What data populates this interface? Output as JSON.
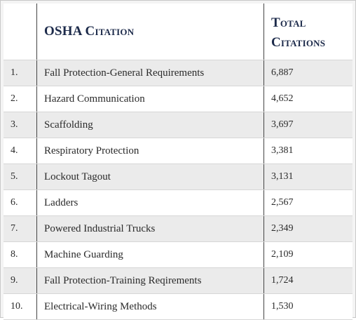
{
  "table": {
    "header": [
      "OSHA Citation",
      "Total Citations"
    ],
    "rows": [
      [
        "1.",
        "Fall Protection-General Requirements",
        "6,887"
      ],
      [
        "2.",
        "Hazard Communication",
        "4,652"
      ],
      [
        "3.",
        "Scaffolding",
        "3,697"
      ],
      [
        "4.",
        "Respiratory Protection",
        "3,381"
      ],
      [
        "5.",
        "Lockout Tagout",
        "3,131"
      ],
      [
        "6.",
        "Ladders",
        "2,567"
      ],
      [
        "7.",
        "Powered Industrial Trucks",
        "2,349"
      ],
      [
        "8.",
        "Machine Guarding",
        "2,109"
      ],
      [
        "9.",
        "Fall Protection-Training Reqirements",
        "1,724"
      ],
      [
        "10.",
        "Electrical-Wiring Methods",
        "1,530"
      ]
    ]
  }
}
